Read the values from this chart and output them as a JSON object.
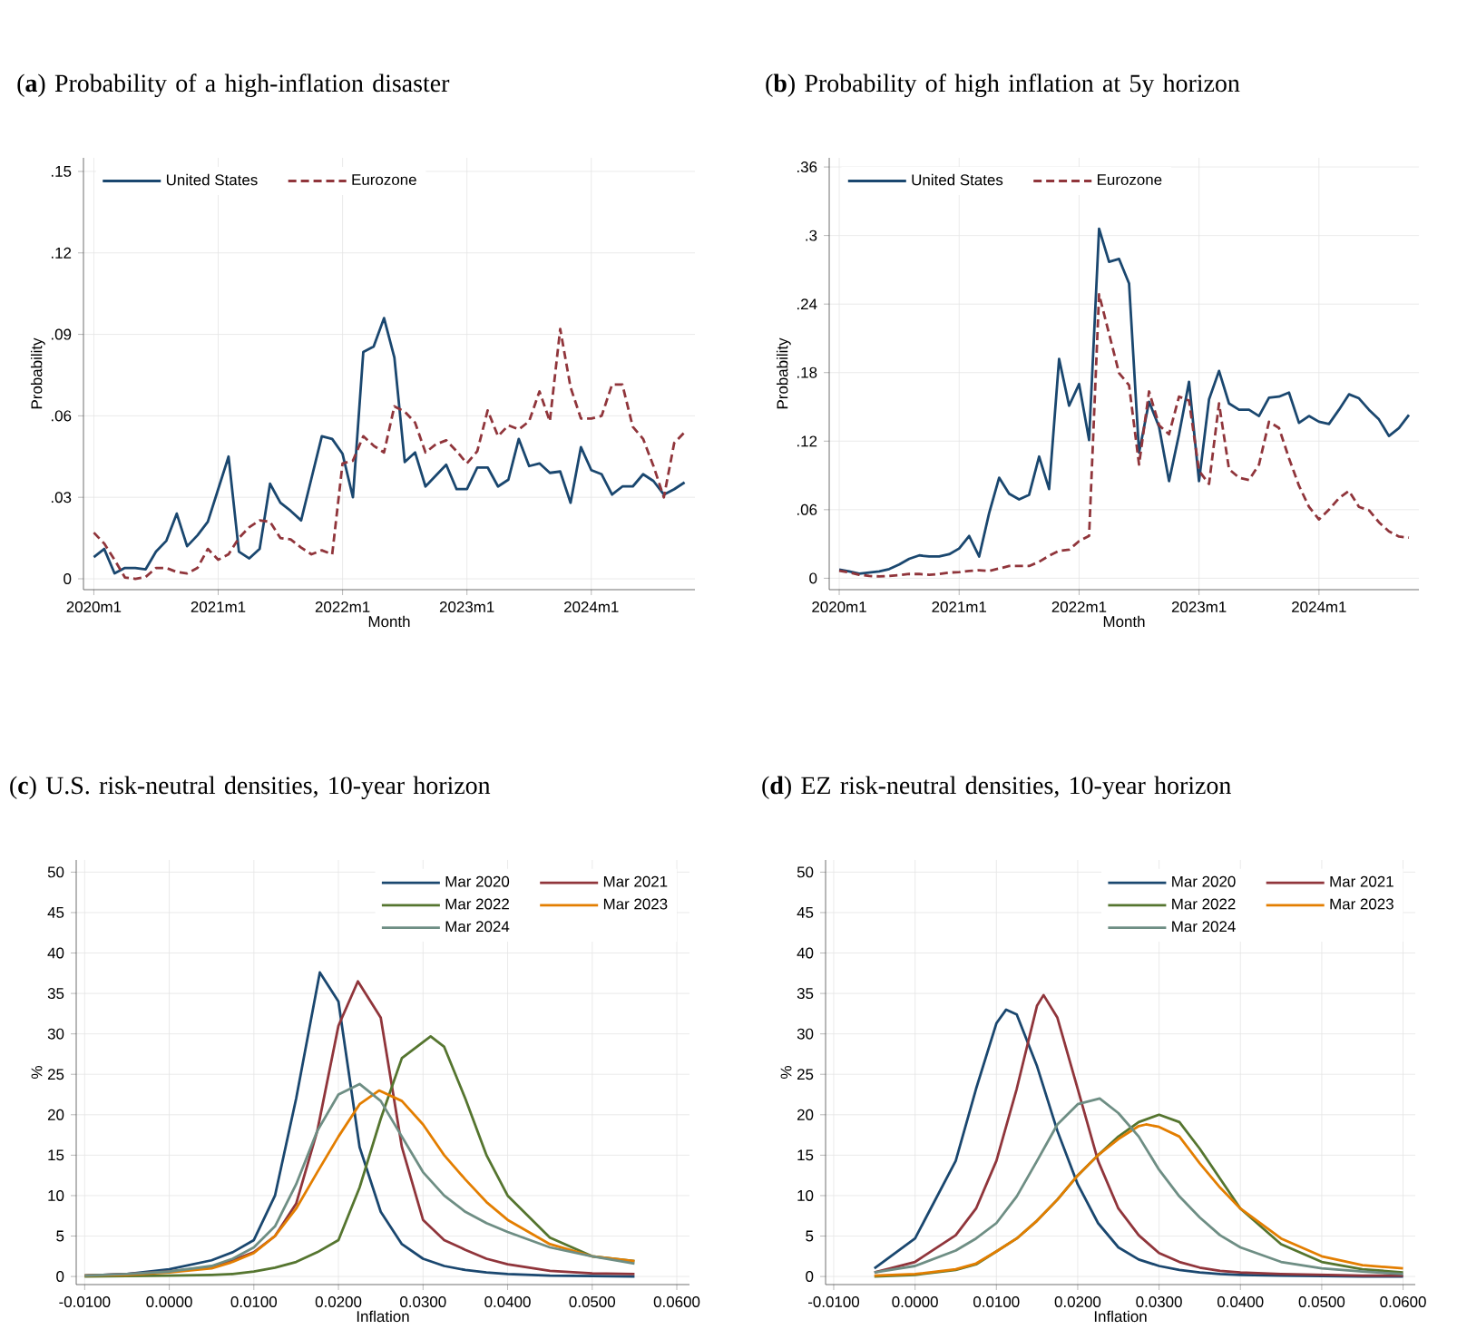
{
  "chart_data": [
    {
      "type": "line",
      "title": "(**a**) Probability of a high-inflation disaster",
      "xlabel": "Month",
      "ylabel": "Probability",
      "grid": true,
      "legend": "top left",
      "x": [
        "2020-01",
        "2020-02",
        "2020-03",
        "2020-04",
        "2020-05",
        "2020-06",
        "2020-07",
        "2020-08",
        "2020-09",
        "2020-10",
        "2020-11",
        "2020-12",
        "2021-01",
        "2021-02",
        "2021-03",
        "2021-04",
        "2021-05",
        "2021-06",
        "2021-07",
        "2021-08",
        "2021-09",
        "2021-10",
        "2021-11",
        "2021-12",
        "2022-01",
        "2022-02",
        "2022-03",
        "2022-04",
        "2022-05",
        "2022-06",
        "2022-07",
        "2022-08",
        "2022-09",
        "2022-10",
        "2022-11",
        "2022-12",
        "2023-01",
        "2023-02",
        "2023-03",
        "2023-04",
        "2023-05",
        "2023-06",
        "2023-07",
        "2023-08",
        "2023-09",
        "2023-10",
        "2023-11",
        "2023-12",
        "2024-01",
        "2024-02",
        "2024-03",
        "2024-04",
        "2024-05",
        "2024-06",
        "2024-07",
        "2024-08",
        "2024-09",
        "2024-10"
      ],
      "xlim": [
        "2019-12",
        "2024-11"
      ],
      "xticks": [
        {
          "value": "2020-01",
          "label": "2020m1"
        },
        {
          "value": "2021-01",
          "label": "2021m1"
        },
        {
          "value": "2022-01",
          "label": "2022m1"
        },
        {
          "value": "2023-01",
          "label": "2023m1"
        },
        {
          "value": "2024-01",
          "label": "2024m1"
        }
      ],
      "ylim": [
        -0.004,
        0.155
      ],
      "yticks": [
        0,
        {
          "value": 0.03,
          "label": ".03"
        },
        {
          "value": 0.06,
          "label": ".06"
        },
        {
          "value": 0.09,
          "label": ".09"
        },
        {
          "value": 0.12,
          "label": ".12"
        },
        {
          "value": 0.15,
          "label": ".15"
        }
      ],
      "series": [
        {
          "name": "United States",
          "color": "#1a476f",
          "line_style": "solid",
          "values": [
            0.008,
            0.011,
            0.002,
            0.004,
            0.004,
            0.0035,
            0.01,
            0.014,
            0.024,
            0.012,
            0.016,
            0.021,
            0.033,
            0.045,
            0.01,
            0.0075,
            0.011,
            0.035,
            0.028,
            0.025,
            0.0215,
            0.037,
            0.0525,
            0.0515,
            0.046,
            0.03,
            0.0835,
            0.0855,
            0.096,
            0.0815,
            0.043,
            0.0465,
            0.034,
            0.038,
            0.042,
            0.033,
            0.033,
            0.041,
            0.041,
            0.034,
            0.0365,
            0.0515,
            0.0415,
            0.0425,
            0.039,
            0.0395,
            0.028,
            0.0485,
            0.04,
            0.0385,
            0.031,
            0.034,
            0.034,
            0.0385,
            0.036,
            0.031,
            0.033,
            0.0355
          ]
        },
        {
          "name": "Eurozone",
          "color": "#90353b",
          "line_style": "dashed",
          "values": [
            0.017,
            0.013,
            0.007,
            0.0005,
            0,
            0.0007,
            0.004,
            0.004,
            0.0025,
            0.002,
            0.004,
            0.011,
            0.007,
            0.009,
            0.015,
            0.019,
            0.0215,
            0.021,
            0.015,
            0.0145,
            0.0115,
            0.009,
            0.0105,
            0.009,
            0.0425,
            0.0435,
            0.0525,
            0.049,
            0.0465,
            0.0635,
            0.0615,
            0.0575,
            0.0465,
            0.0495,
            0.051,
            0.047,
            0.0425,
            0.047,
            0.062,
            0.0525,
            0.0565,
            0.055,
            0.058,
            0.069,
            0.058,
            0.092,
            0.0705,
            0.059,
            0.059,
            0.06,
            0.0715,
            0.0715,
            0.056,
            0.0515,
            0.0415,
            0.03,
            0.05,
            0.054
          ]
        }
      ]
    },
    {
      "type": "line",
      "title": "(**b**) Probability of high inflation at 5y horizon",
      "xlabel": "Month",
      "ylabel": "Probability",
      "grid": true,
      "legend": "top left",
      "x": [
        "2020-01",
        "2020-02",
        "2020-03",
        "2020-04",
        "2020-05",
        "2020-06",
        "2020-07",
        "2020-08",
        "2020-09",
        "2020-10",
        "2020-11",
        "2020-12",
        "2021-01",
        "2021-02",
        "2021-03",
        "2021-04",
        "2021-05",
        "2021-06",
        "2021-07",
        "2021-08",
        "2021-09",
        "2021-10",
        "2021-11",
        "2021-12",
        "2022-01",
        "2022-02",
        "2022-03",
        "2022-04",
        "2022-05",
        "2022-06",
        "2022-07",
        "2022-08",
        "2022-09",
        "2022-10",
        "2022-11",
        "2022-12",
        "2023-01",
        "2023-02",
        "2023-03",
        "2023-04",
        "2023-05",
        "2023-06",
        "2023-07",
        "2023-08",
        "2023-09",
        "2023-10",
        "2023-11",
        "2023-12",
        "2024-01",
        "2024-02",
        "2024-03",
        "2024-04",
        "2024-05",
        "2024-06",
        "2024-07",
        "2024-08",
        "2024-09",
        "2024-10"
      ],
      "xlim": [
        "2019-12",
        "2024-11"
      ],
      "xticks": [
        {
          "value": "2020-01",
          "label": "2020m1"
        },
        {
          "value": "2021-01",
          "label": "2021m1"
        },
        {
          "value": "2022-01",
          "label": "2022m1"
        },
        {
          "value": "2023-01",
          "label": "2023m1"
        },
        {
          "value": "2024-01",
          "label": "2024m1"
        }
      ],
      "ylim": [
        -0.01,
        0.368
      ],
      "yticks": [
        0,
        {
          "value": 0.06,
          "label": ".06"
        },
        {
          "value": 0.12,
          "label": ".12"
        },
        {
          "value": 0.18,
          "label": ".18"
        },
        {
          "value": 0.24,
          "label": ".24"
        },
        {
          "value": 0.3,
          "label": ".3"
        },
        {
          "value": 0.36,
          "label": ".36"
        }
      ],
      "series": [
        {
          "name": "United States",
          "color": "#1a476f",
          "line_style": "solid",
          "values": [
            0.0075,
            0.006,
            0.004,
            0.005,
            0.006,
            0.008,
            0.012,
            0.017,
            0.02,
            0.019,
            0.019,
            0.021,
            0.026,
            0.037,
            0.019,
            0.057,
            0.088,
            0.074,
            0.069,
            0.073,
            0.1065,
            0.078,
            0.192,
            0.151,
            0.17,
            0.121,
            0.306,
            0.277,
            0.2795,
            0.258,
            0.11,
            0.1545,
            0.1325,
            0.085,
            0.126,
            0.172,
            0.085,
            0.1565,
            0.1815,
            0.153,
            0.1475,
            0.1475,
            0.142,
            0.158,
            0.159,
            0.1625,
            0.136,
            0.142,
            0.137,
            0.135,
            0.1475,
            0.161,
            0.1575,
            0.1475,
            0.139,
            0.1245,
            0.1315,
            0.143
          ]
        },
        {
          "name": "Eurozone",
          "color": "#90353b",
          "line_style": "dashed",
          "values": [
            0.0065,
            0.005,
            0.003,
            0.002,
            0.0016,
            0.002,
            0.0027,
            0.0037,
            0.0037,
            0.003,
            0.0037,
            0.005,
            0.0053,
            0.0064,
            0.007,
            0.0064,
            0.0085,
            0.0107,
            0.0107,
            0.0107,
            0.0144,
            0.0197,
            0.024,
            0.025,
            0.0325,
            0.037,
            0.2485,
            0.214,
            0.1795,
            0.169,
            0.0995,
            0.1635,
            0.134,
            0.126,
            0.159,
            0.1555,
            0.094,
            0.0825,
            0.153,
            0.0955,
            0.088,
            0.086,
            0.0995,
            0.137,
            0.1315,
            0.105,
            0.081,
            0.0625,
            0.0515,
            0.06,
            0.07,
            0.0765,
            0.0625,
            0.0595,
            0.049,
            0.041,
            0.0365,
            0.0355
          ]
        }
      ]
    },
    {
      "type": "line",
      "title": "(**c**) U.S. risk-neutral densities, 10-year horizon",
      "xlabel": "Inflation",
      "ylabel": "%",
      "grid": true,
      "legend": "top right",
      "xlim": [
        -0.011,
        0.0615
      ],
      "xticks": [
        {
          "value": -0.01,
          "label": "-0.0100"
        },
        {
          "value": 0,
          "label": "0.0000"
        },
        {
          "value": 0.01,
          "label": "0.0100"
        },
        {
          "value": 0.02,
          "label": "0.0200"
        },
        {
          "value": 0.03,
          "label": "0.0300"
        },
        {
          "value": 0.04,
          "label": "0.0400"
        },
        {
          "value": 0.05,
          "label": "0.0500"
        },
        {
          "value": 0.06,
          "label": "0.0600"
        }
      ],
      "ylim": [
        -1,
        51.5
      ],
      "yticks": [
        0,
        5,
        10,
        15,
        20,
        25,
        30,
        35,
        40,
        45,
        50
      ],
      "series": [
        {
          "name": "Mar 2020",
          "color": "#1a476f",
          "x": [
            -0.01,
            -0.005,
            0,
            0.005,
            0.0075,
            0.01,
            0.0125,
            0.015,
            0.0178,
            0.02,
            0.0225,
            0.025,
            0.0275,
            0.03,
            0.0325,
            0.035,
            0.0375,
            0.04,
            0.045,
            0.05,
            0.055
          ],
          "values": [
            0.1,
            0.3,
            0.9,
            2,
            3,
            4.5,
            10,
            22,
            37.6,
            34,
            16,
            8,
            4,
            2.2,
            1.3,
            0.8,
            0.5,
            0.3,
            0.1,
            0.05,
            0
          ]
        },
        {
          "name": "Mar 2021",
          "color": "#90353b",
          "x": [
            -0.01,
            -0.005,
            0,
            0.005,
            0.0075,
            0.01,
            0.0125,
            0.015,
            0.0175,
            0.02,
            0.0223,
            0.025,
            0.0275,
            0.03,
            0.0325,
            0.035,
            0.0375,
            0.04,
            0.045,
            0.05,
            0.055
          ],
          "values": [
            0.1,
            0.3,
            0.6,
            1.2,
            2,
            3,
            5,
            9,
            18,
            31,
            36.5,
            32,
            16,
            7,
            4.5,
            3.3,
            2.2,
            1.5,
            0.7,
            0.4,
            0.3
          ]
        },
        {
          "name": "Mar 2022",
          "color": "#55752f",
          "x": [
            -0.01,
            -0.005,
            0,
            0.005,
            0.0075,
            0.01,
            0.0125,
            0.015,
            0.0175,
            0.02,
            0.0225,
            0.025,
            0.0275,
            0.0309,
            0.0325,
            0.035,
            0.0375,
            0.04,
            0.045,
            0.05,
            0.055
          ],
          "values": [
            0,
            0.05,
            0.1,
            0.2,
            0.3,
            0.6,
            1.1,
            1.8,
            3,
            4.5,
            11,
            19.5,
            27,
            29.7,
            28.4,
            22,
            15,
            10,
            4.8,
            2.5,
            1.9
          ]
        },
        {
          "name": "Mar 2023",
          "color": "#e37e00",
          "x": [
            -0.01,
            -0.005,
            0,
            0.005,
            0.0075,
            0.01,
            0.0125,
            0.015,
            0.0175,
            0.02,
            0.0225,
            0.0248,
            0.0275,
            0.03,
            0.0325,
            0.035,
            0.0375,
            0.04,
            0.045,
            0.05,
            0.055
          ],
          "values": [
            0.1,
            0.2,
            0.5,
            1,
            1.8,
            2.9,
            5,
            8.4,
            12.9,
            17.3,
            21.3,
            23,
            21.7,
            18.8,
            15,
            12,
            9.2,
            7,
            4,
            2.5,
            1.9
          ]
        },
        {
          "name": "Mar 2024",
          "color": "#6e8e84",
          "x": [
            -0.01,
            -0.005,
            0,
            0.005,
            0.0075,
            0.01,
            0.0125,
            0.015,
            0.0175,
            0.02,
            0.0225,
            0.025,
            0.0275,
            0.03,
            0.0325,
            0.035,
            0.0375,
            0.04,
            0.045,
            0.05,
            0.055
          ],
          "values": [
            0.1,
            0.3,
            0.6,
            1.3,
            2.2,
            3.6,
            6.2,
            11.4,
            18,
            22.5,
            23.8,
            21.7,
            17.3,
            12.9,
            10,
            8,
            6.6,
            5.5,
            3.6,
            2.5,
            1.6
          ]
        }
      ]
    },
    {
      "type": "line",
      "title": "(**d**) EZ risk-neutral densities, 10-year horizon",
      "xlabel": "Inflation",
      "ylabel": "%",
      "grid": true,
      "legend": "top right",
      "xlim": [
        -0.011,
        0.0615
      ],
      "xticks": [
        {
          "value": -0.01,
          "label": "-0.0100"
        },
        {
          "value": 0,
          "label": "0.0000"
        },
        {
          "value": 0.01,
          "label": "0.0100"
        },
        {
          "value": 0.02,
          "label": "0.0200"
        },
        {
          "value": 0.03,
          "label": "0.0300"
        },
        {
          "value": 0.04,
          "label": "0.0400"
        },
        {
          "value": 0.05,
          "label": "0.0500"
        },
        {
          "value": 0.06,
          "label": "0.0600"
        }
      ],
      "ylim": [
        -1,
        51.5
      ],
      "yticks": [
        0,
        5,
        10,
        15,
        20,
        25,
        30,
        35,
        40,
        45,
        50
      ],
      "series": [
        {
          "name": "Mar 2020",
          "color": "#1a476f",
          "x": [
            -0.005,
            0,
            0.005,
            0.0075,
            0.01,
            0.0112,
            0.0125,
            0.015,
            0.0175,
            0.02,
            0.0225,
            0.025,
            0.0275,
            0.03,
            0.0325,
            0.035,
            0.0375,
            0.04,
            0.045,
            0.05,
            0.055,
            0.06
          ],
          "values": [
            1,
            4.7,
            14.3,
            23.2,
            31.3,
            33,
            32.4,
            26,
            18,
            11.4,
            6.6,
            3.6,
            2.1,
            1.3,
            0.8,
            0.5,
            0.3,
            0.2,
            0.1,
            0.05,
            0,
            0
          ]
        },
        {
          "name": "Mar 2021",
          "color": "#90353b",
          "x": [
            -0.005,
            0,
            0.005,
            0.0075,
            0.01,
            0.0125,
            0.015,
            0.0158,
            0.0175,
            0.02,
            0.0225,
            0.025,
            0.0275,
            0.03,
            0.0325,
            0.035,
            0.0375,
            0.04,
            0.045,
            0.05,
            0.055,
            0.06
          ],
          "values": [
            0.5,
            1.8,
            5.1,
            8.4,
            14.3,
            23.2,
            33.5,
            34.8,
            32,
            23.2,
            14.3,
            8.4,
            5.1,
            2.9,
            1.8,
            1.1,
            0.7,
            0.5,
            0.3,
            0.2,
            0.1,
            0.1
          ]
        },
        {
          "name": "Mar 2022",
          "color": "#55752f",
          "x": [
            -0.005,
            0,
            0.005,
            0.0075,
            0.01,
            0.0125,
            0.015,
            0.0175,
            0.02,
            0.0225,
            0.025,
            0.0275,
            0.03,
            0.0325,
            0.035,
            0.0375,
            0.04,
            0.045,
            0.05,
            0.055,
            0.06
          ],
          "values": [
            0,
            0.2,
            0.8,
            1.5,
            3.1,
            4.7,
            6.9,
            9.5,
            12.5,
            15,
            17.3,
            19.1,
            20,
            19.1,
            15.8,
            12.1,
            8.4,
            4,
            1.8,
            0.9,
            0.5
          ]
        },
        {
          "name": "Mar 2023",
          "color": "#e37e00",
          "x": [
            -0.005,
            0,
            0.005,
            0.0075,
            0.01,
            0.0125,
            0.015,
            0.0175,
            0.02,
            0.0225,
            0.025,
            0.0275,
            0.0284,
            0.03,
            0.0325,
            0.035,
            0.0375,
            0.04,
            0.045,
            0.05,
            0.055,
            0.06
          ],
          "values": [
            0.1,
            0.3,
            0.9,
            1.6,
            3.1,
            4.7,
            6.9,
            9.5,
            12.5,
            15,
            17,
            18.6,
            18.8,
            18.5,
            17.3,
            14,
            11,
            8.4,
            4.7,
            2.5,
            1.4,
            1
          ]
        },
        {
          "name": "Mar 2024",
          "color": "#6e8e84",
          "x": [
            -0.005,
            0,
            0.005,
            0.0075,
            0.01,
            0.0125,
            0.015,
            0.0175,
            0.02,
            0.0227,
            0.025,
            0.0275,
            0.03,
            0.0325,
            0.035,
            0.0375,
            0.04,
            0.045,
            0.05,
            0.055,
            0.06
          ],
          "values": [
            0.5,
            1.3,
            3.2,
            4.7,
            6.6,
            9.9,
            14.3,
            18.8,
            21.3,
            22,
            20.2,
            17.3,
            13.2,
            9.9,
            7.3,
            5.1,
            3.6,
            1.8,
            1,
            0.6,
            0.3
          ]
        }
      ]
    }
  ]
}
